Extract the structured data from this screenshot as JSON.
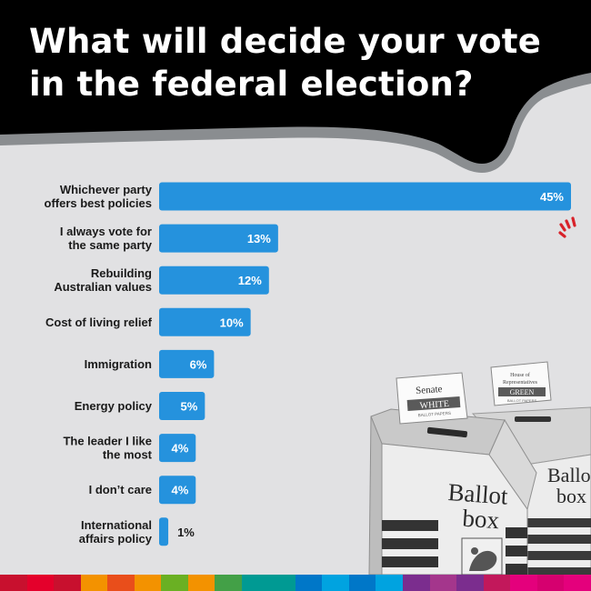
{
  "headline": "What will decide your vote in the federal election?",
  "colors": {
    "bar": "#2592dd",
    "background": "#e1e1e3",
    "header": "#000000",
    "header_rim": "#8a8d90",
    "accent": "#d8222a"
  },
  "chart_data": {
    "type": "bar",
    "orientation": "horizontal",
    "title": "",
    "xlabel": "",
    "ylabel": "",
    "xlim": [
      0,
      45
    ],
    "grid": false,
    "legend": "none",
    "categories": [
      [
        "Whichever party",
        "offers best policies"
      ],
      [
        "I always vote for",
        "the same party"
      ],
      [
        "Rebuilding",
        "Australian values"
      ],
      [
        "Cost of living relief"
      ],
      [
        "Immigration"
      ],
      [
        "Energy policy"
      ],
      [
        "The leader I like",
        "the most"
      ],
      [
        "I don’t care"
      ],
      [
        "International",
        "affairs policy"
      ]
    ],
    "values": [
      45,
      13,
      12,
      10,
      6,
      5,
      4,
      4,
      1
    ],
    "data_labels": [
      "45%",
      "13%",
      "12%",
      "10%",
      "6%",
      "5%",
      "4%",
      "4%",
      "1%"
    ]
  },
  "image_text": {
    "box1_card_title": "Senate",
    "box1_card_band": "WHITE",
    "box1_card_small": "BALLOT PAPERS",
    "box1_label_line1": "Ballot",
    "box1_label_line2": "box",
    "box2_card_title_line1": "House of",
    "box2_card_title_line2": "Representatives",
    "box2_card_band": "GREEN",
    "box2_card_small": "BALLOT PAPERS",
    "box2_label_line1": "Ballo",
    "box2_label_line2": "box"
  },
  "strip_colors": [
    "#c8102e",
    "#e4002b",
    "#c8102e",
    "#f39200",
    "#e94e1b",
    "#f39200",
    "#6ab023",
    "#f39200",
    "#43a047",
    "#009a93",
    "#009a93",
    "#0077c8",
    "#00a3e0",
    "#0077c8",
    "#00a3e0",
    "#7b2d8e",
    "#a4368c",
    "#7b2d8e",
    "#c2185b",
    "#e4007c",
    "#d6006f",
    "#e4007c"
  ]
}
